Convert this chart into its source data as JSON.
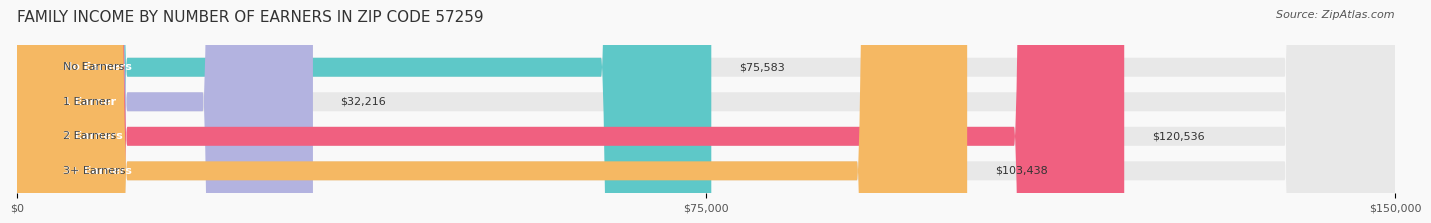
{
  "title": "FAMILY INCOME BY NUMBER OF EARNERS IN ZIP CODE 57259",
  "source": "Source: ZipAtlas.com",
  "categories": [
    "No Earners",
    "1 Earner",
    "2 Earners",
    "3+ Earners"
  ],
  "values": [
    75583,
    32216,
    120536,
    103438
  ],
  "labels": [
    "$75,583",
    "$32,216",
    "$120,536",
    "$103,438"
  ],
  "bar_colors": [
    "#5ec8c8",
    "#b3b3e0",
    "#f06080",
    "#f5b863"
  ],
  "bar_bg_color": "#eeeeee",
  "xlim": [
    0,
    150000
  ],
  "xticks": [
    0,
    75000,
    150000
  ],
  "xtick_labels": [
    "$0",
    "$75,000",
    "$150,000"
  ],
  "title_fontsize": 11,
  "source_fontsize": 8,
  "label_fontsize": 8,
  "category_fontsize": 8,
  "bar_height": 0.55,
  "background_color": "#f9f9f9",
  "title_color": "#333333",
  "source_color": "#555555",
  "label_color_inside": "#ffffff",
  "label_color_outside": "#333333"
}
